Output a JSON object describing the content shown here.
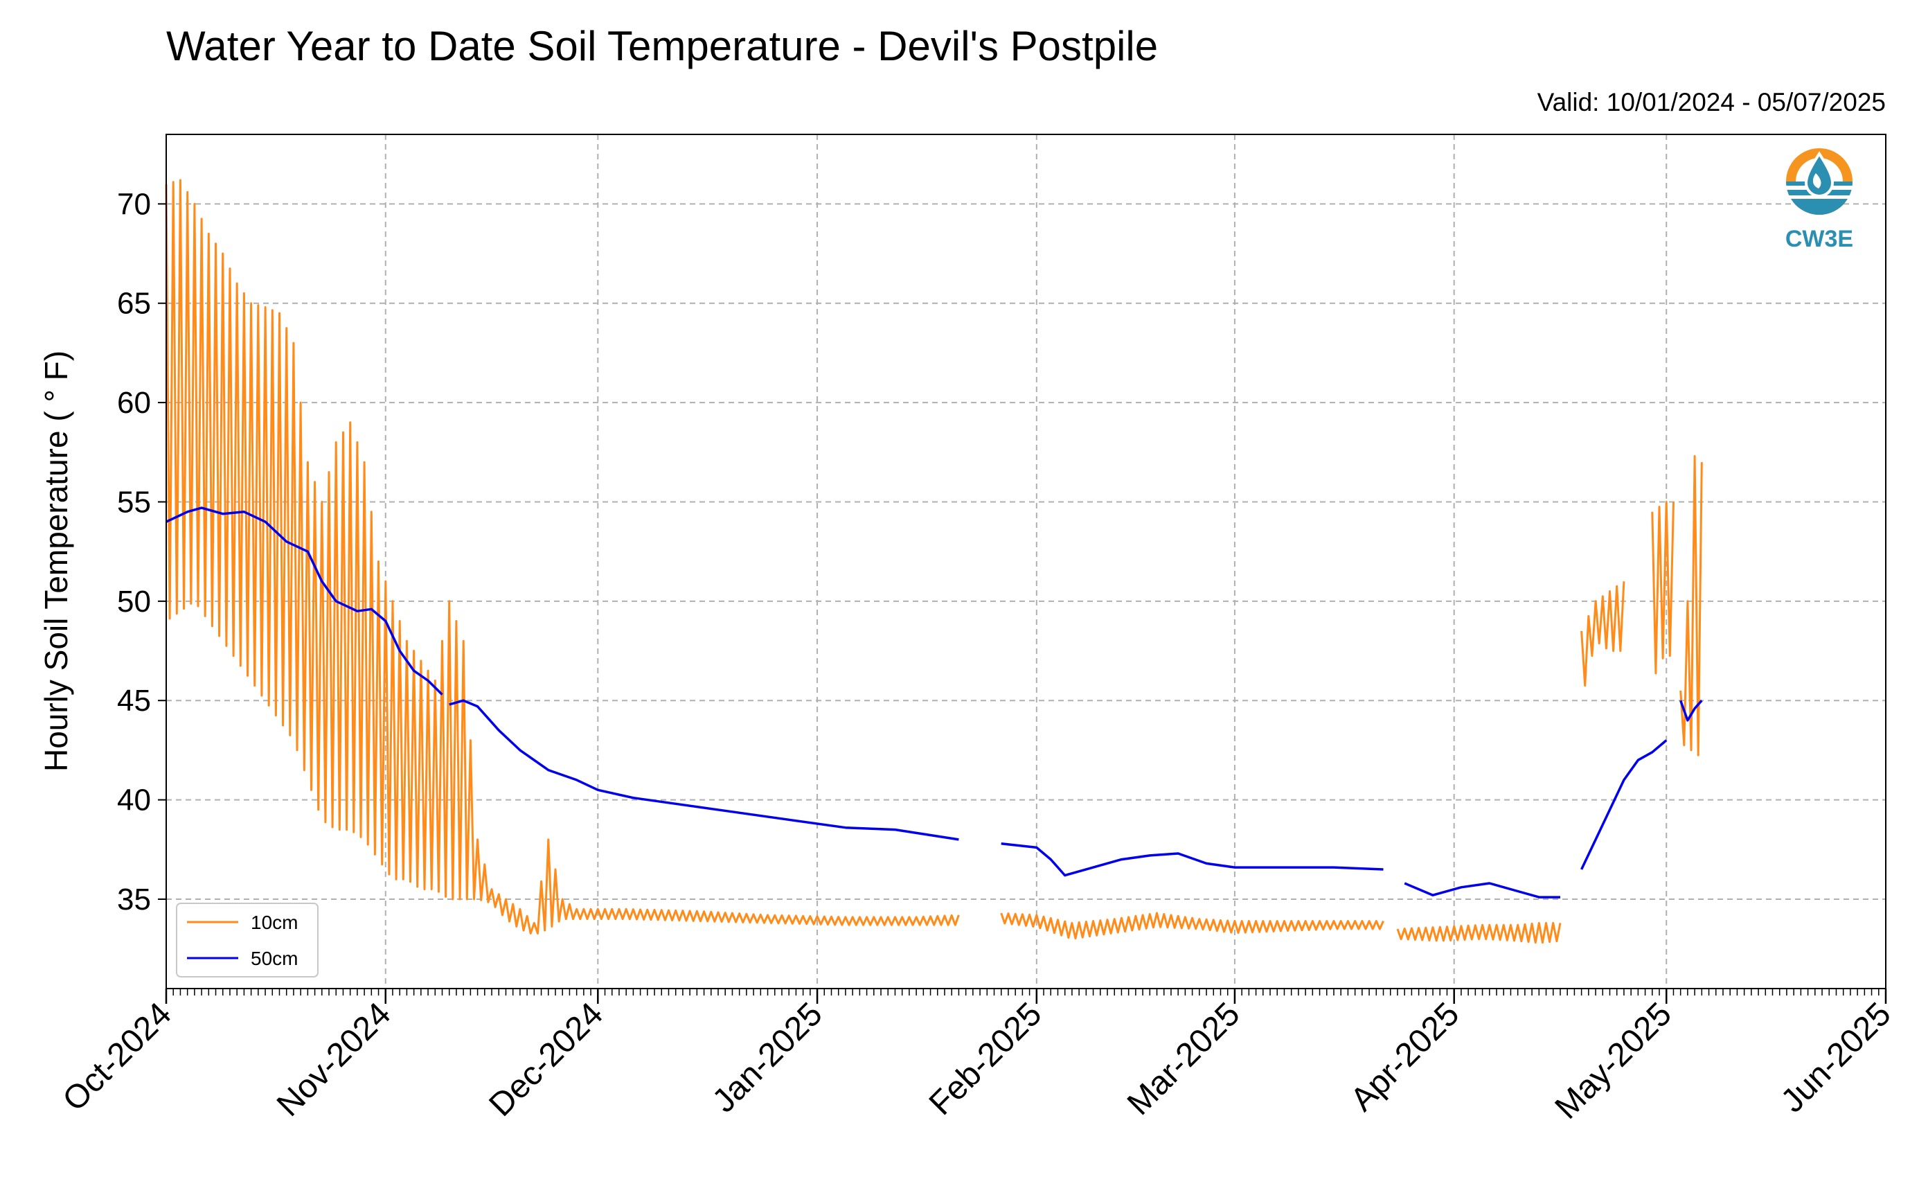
{
  "chart_data": {
    "type": "line",
    "title": "Water Year to Date Soil Temperature - Devil's Postpile",
    "valid_label": "Valid: 10/01/2024 - 05/07/2025",
    "ylabel": "Hourly Soil Temperature ( ° F)",
    "ylim": [
      30.5,
      73.5
    ],
    "y_ticks": [
      35,
      40,
      45,
      50,
      55,
      60,
      65,
      70
    ],
    "x_range": [
      "2024-10-01",
      "2025-06-01"
    ],
    "x_ticks": [
      {
        "date": "2024-10-01",
        "label": "Oct-2024"
      },
      {
        "date": "2024-11-01",
        "label": "Nov-2024"
      },
      {
        "date": "2024-12-01",
        "label": "Dec-2024"
      },
      {
        "date": "2025-01-01",
        "label": "Jan-2025"
      },
      {
        "date": "2025-02-01",
        "label": "Feb-2025"
      },
      {
        "date": "2025-03-01",
        "label": "Mar-2025"
      },
      {
        "date": "2025-04-01",
        "label": "Apr-2025"
      },
      {
        "date": "2025-05-01",
        "label": "May-2025"
      },
      {
        "date": "2025-06-01",
        "label": "Jun-2025"
      }
    ],
    "grid": true,
    "legend_position": "bottom-left",
    "logo_text": "CW3E",
    "series": [
      {
        "name": "10cm",
        "color": "#ff8c1a",
        "diurnal": true,
        "values": [
          [
            "2024-10-01",
            49.0,
            71.0
          ],
          [
            "2024-10-03",
            49.5,
            71.2
          ],
          [
            "2024-10-05",
            50.0,
            70.0
          ],
          [
            "2024-10-07",
            49.0,
            68.5
          ],
          [
            "2024-10-09",
            48.0,
            67.5
          ],
          [
            "2024-10-11",
            47.0,
            66.0
          ],
          [
            "2024-10-13",
            46.0,
            65.0
          ],
          [
            "2024-10-15",
            45.0,
            64.8
          ],
          [
            "2024-10-17",
            44.0,
            64.5
          ],
          [
            "2024-10-19",
            43.0,
            63.0
          ],
          [
            "2024-10-21",
            41.0,
            57.0
          ],
          [
            "2024-10-23",
            39.0,
            55.0
          ],
          [
            "2024-10-25",
            38.5,
            58.0
          ],
          [
            "2024-10-27",
            38.5,
            59.0
          ],
          [
            "2024-10-29",
            38.0,
            57.0
          ],
          [
            "2024-10-31",
            37.0,
            52.0
          ],
          [
            "2024-11-02",
            36.0,
            50.0
          ],
          [
            "2024-11-04",
            36.0,
            48.0
          ],
          [
            "2024-11-06",
            35.5,
            47.0
          ],
          [
            "2024-11-08",
            35.5,
            46.0
          ],
          [
            "2024-11-10",
            35.0,
            50.0
          ],
          [
            "2024-11-12",
            35.0,
            48.0
          ],
          [
            "2024-11-14",
            35.0,
            38.0
          ],
          [
            "2024-11-16",
            34.8,
            35.5
          ],
          [
            "2024-11-18",
            34.0,
            35.0
          ],
          [
            "2024-11-20",
            33.5,
            34.5
          ],
          [
            "2024-11-22",
            33.2,
            33.8
          ],
          [
            "2024-11-24",
            33.5,
            38.0
          ],
          [
            "2024-11-26",
            34.0,
            35.0
          ],
          [
            "2024-11-28",
            34.0,
            34.5
          ],
          [
            "2024-12-05",
            34.0,
            34.5
          ],
          [
            "2024-12-15",
            33.9,
            34.4
          ],
          [
            "2024-12-25",
            33.8,
            34.2
          ],
          [
            "2025-01-05",
            33.7,
            34.1
          ],
          [
            "2025-01-15",
            33.7,
            34.1
          ],
          [
            "2025-01-21",
            33.7,
            34.2
          ],
          [
            "gap",
            0,
            0
          ],
          [
            "2025-01-27",
            33.8,
            34.3
          ],
          [
            "2025-02-01",
            33.6,
            34.2
          ],
          [
            "2025-02-06",
            33.0,
            33.8
          ],
          [
            "2025-02-12",
            33.3,
            34.0
          ],
          [
            "2025-02-18",
            33.6,
            34.3
          ],
          [
            "2025-02-24",
            33.5,
            34.0
          ],
          [
            "2025-03-01",
            33.3,
            33.9
          ],
          [
            "2025-03-08",
            33.4,
            33.9
          ],
          [
            "2025-03-15",
            33.5,
            33.9
          ],
          [
            "2025-03-22",
            33.5,
            33.9
          ],
          [
            "gap",
            0,
            0
          ],
          [
            "2025-03-24",
            33.0,
            33.5
          ],
          [
            "2025-03-30",
            32.9,
            33.6
          ],
          [
            "2025-04-05",
            33.0,
            33.7
          ],
          [
            "2025-04-10",
            32.9,
            33.7
          ],
          [
            "2025-04-13",
            32.8,
            33.8
          ],
          [
            "2025-04-16",
            32.9,
            33.8
          ],
          [
            "gap",
            0,
            0
          ],
          [
            "2025-04-19",
            45.0,
            48.5
          ],
          [
            "2025-04-21",
            48.0,
            50.0
          ],
          [
            "2025-04-23",
            47.5,
            50.5
          ],
          [
            "2025-04-25",
            47.5,
            51.0
          ],
          [
            "gap",
            0,
            0
          ],
          [
            "2025-04-29",
            46.0,
            54.5
          ],
          [
            "2025-05-01",
            47.5,
            55.0
          ],
          [
            "2025-05-02",
            47.0,
            55.0
          ],
          [
            "gap",
            0,
            0
          ],
          [
            "2025-05-03",
            43.5,
            45.5
          ],
          [
            "2025-05-04",
            42.0,
            50.0
          ],
          [
            "2025-05-05",
            43.0,
            57.3
          ],
          [
            "2025-05-06",
            41.5,
            57.0
          ]
        ]
      },
      {
        "name": "50cm",
        "color": "#0000ee",
        "values": [
          [
            "2024-10-01",
            54.0
          ],
          [
            "2024-10-04",
            54.5
          ],
          [
            "2024-10-06",
            54.7
          ],
          [
            "2024-10-09",
            54.4
          ],
          [
            "2024-10-12",
            54.5
          ],
          [
            "2024-10-15",
            54.0
          ],
          [
            "2024-10-18",
            53.0
          ],
          [
            "2024-10-21",
            52.5
          ],
          [
            "2024-10-23",
            51.0
          ],
          [
            "2024-10-25",
            50.0
          ],
          [
            "2024-10-28",
            49.5
          ],
          [
            "2024-10-30",
            49.6
          ],
          [
            "2024-11-01",
            49.0
          ],
          [
            "2024-11-03",
            47.5
          ],
          [
            "2024-11-05",
            46.5
          ],
          [
            "2024-11-07",
            46.0
          ],
          [
            "2024-11-09",
            45.3
          ],
          [
            "gap",
            0
          ],
          [
            "2024-11-10",
            44.8
          ],
          [
            "2024-11-12",
            45.0
          ],
          [
            "2024-11-14",
            44.7
          ],
          [
            "2024-11-17",
            43.5
          ],
          [
            "2024-11-20",
            42.5
          ],
          [
            "2024-11-24",
            41.5
          ],
          [
            "2024-11-28",
            41.0
          ],
          [
            "2024-12-01",
            40.5
          ],
          [
            "2024-12-06",
            40.1
          ],
          [
            "2024-12-12",
            39.8
          ],
          [
            "2024-12-20",
            39.4
          ],
          [
            "2024-12-28",
            39.0
          ],
          [
            "2025-01-05",
            38.6
          ],
          [
            "2025-01-12",
            38.5
          ],
          [
            "2025-01-21",
            38.0
          ],
          [
            "gap",
            0
          ],
          [
            "2025-01-27",
            37.8
          ],
          [
            "2025-02-01",
            37.6
          ],
          [
            "2025-02-03",
            37.0
          ],
          [
            "2025-02-05",
            36.2
          ],
          [
            "2025-02-09",
            36.6
          ],
          [
            "2025-02-13",
            37.0
          ],
          [
            "2025-02-17",
            37.2
          ],
          [
            "2025-02-21",
            37.3
          ],
          [
            "2025-02-25",
            36.8
          ],
          [
            "2025-03-01",
            36.6
          ],
          [
            "2025-03-08",
            36.6
          ],
          [
            "2025-03-15",
            36.6
          ],
          [
            "2025-03-22",
            36.5
          ],
          [
            "gap",
            0
          ],
          [
            "2025-03-25",
            35.8
          ],
          [
            "2025-03-29",
            35.2
          ],
          [
            "2025-04-02",
            35.6
          ],
          [
            "2025-04-06",
            35.8
          ],
          [
            "2025-04-10",
            35.4
          ],
          [
            "2025-04-13",
            35.1
          ],
          [
            "2025-04-16",
            35.1
          ],
          [
            "gap",
            0
          ],
          [
            "2025-04-19",
            36.5
          ],
          [
            "2025-04-21",
            38.0
          ],
          [
            "2025-04-23",
            39.5
          ],
          [
            "2025-04-25",
            41.0
          ],
          [
            "2025-04-27",
            42.0
          ],
          [
            "2025-04-29",
            42.4
          ],
          [
            "2025-05-01",
            43.0
          ],
          [
            "gap",
            0
          ],
          [
            "2025-05-03",
            45.0
          ],
          [
            "2025-05-04",
            44.0
          ],
          [
            "2025-05-05",
            44.6
          ],
          [
            "2025-05-06",
            45.0
          ]
        ]
      }
    ]
  }
}
